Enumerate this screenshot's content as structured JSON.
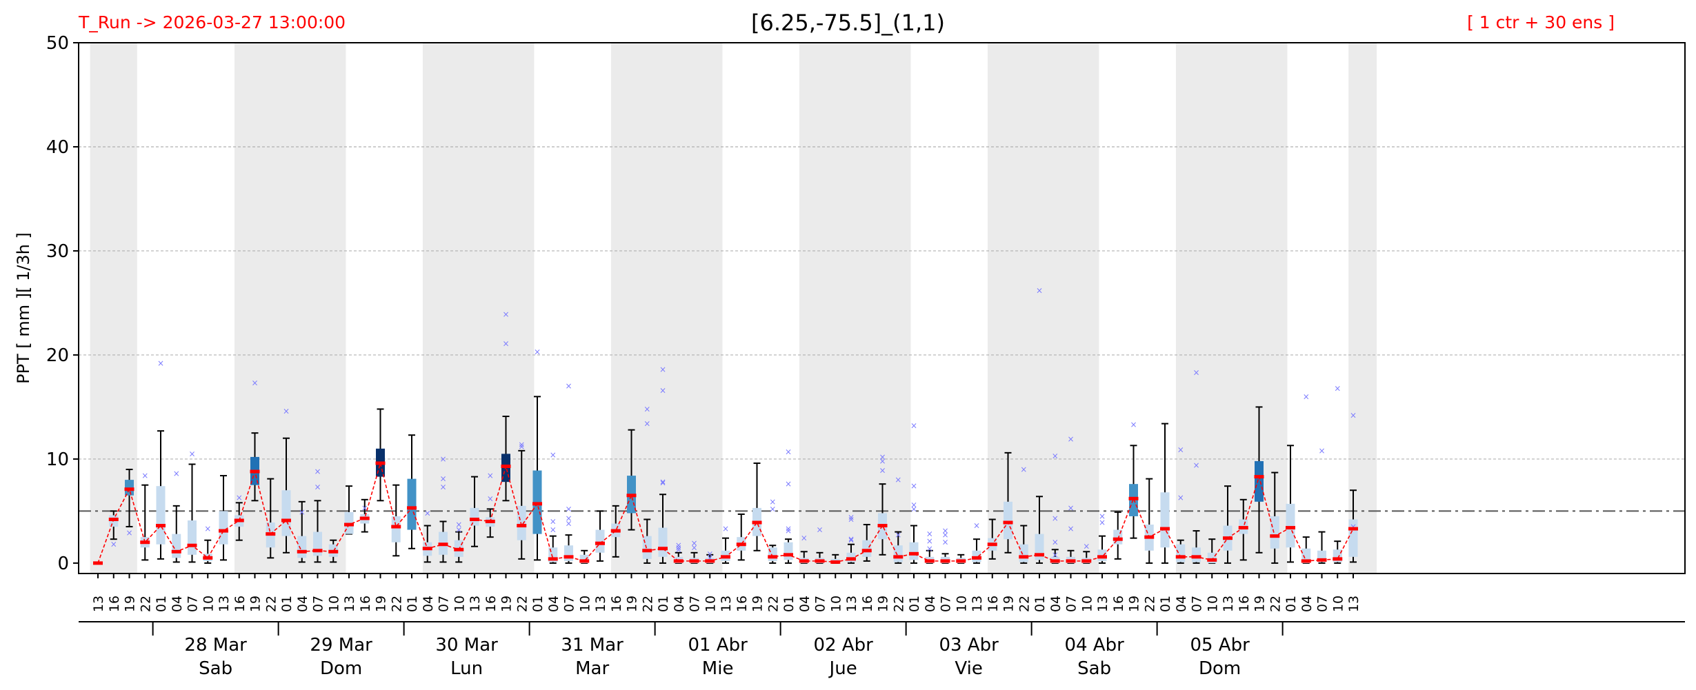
{
  "header": {
    "run_label": "T_Run -> 2026-03-27  13:00:00",
    "title": "[6.25,-75.5]_(1,1)",
    "ensemble_label": "[ 1 ctr + 30 ens ]"
  },
  "chart_data": {
    "type": "box",
    "ylabel": "PPT  [ mm ][ 1/3h ]",
    "ylim": [
      -1,
      50
    ],
    "yticks": [
      0,
      10,
      20,
      30,
      40,
      50
    ],
    "threshold": 5,
    "grid": "y-dashed",
    "hour_labels": [
      "13",
      "16",
      "19",
      "22",
      "01",
      "04",
      "07",
      "10",
      "13",
      "16",
      "19",
      "22",
      "01",
      "04",
      "07",
      "10",
      "13",
      "16",
      "19",
      "22",
      "01",
      "04",
      "07",
      "10",
      "13",
      "16",
      "19",
      "22",
      "01",
      "04",
      "07",
      "10",
      "13",
      "16",
      "19",
      "22",
      "01",
      "04",
      "07",
      "10",
      "13",
      "16",
      "19",
      "22",
      "01",
      "04",
      "07",
      "10",
      "13",
      "16",
      "19",
      "22",
      "01",
      "04",
      "07",
      "10",
      "13",
      "16",
      "19",
      "22",
      "01",
      "04",
      "07",
      "10",
      "13",
      "16",
      "19",
      "22",
      "01",
      "04",
      "07",
      "10",
      "13",
      "16",
      "19",
      "22",
      "01",
      "04",
      "07",
      "10",
      "13",
      "16",
      "19",
      "22",
      "01",
      "04",
      "07",
      "10",
      "13"
    ],
    "day_labels": [
      {
        "date": "28 Mar",
        "weekday": "Sab"
      },
      {
        "date": "29 Mar",
        "weekday": "Dom"
      },
      {
        "date": "30 Mar",
        "weekday": "Lun"
      },
      {
        "date": "31 Mar",
        "weekday": "Mar"
      },
      {
        "date": "01 Abr",
        "weekday": "Mie"
      },
      {
        "date": "02 Abr",
        "weekday": "Jue"
      },
      {
        "date": "03 Abr",
        "weekday": "Vie"
      },
      {
        "date": "04 Abr",
        "weekday": "Sab"
      },
      {
        "date": "05 Abr",
        "weekday": "Dom"
      }
    ],
    "median": [
      0,
      4.2,
      7.1,
      2,
      3.6,
      1.1,
      1.7,
      0.5,
      3.1,
      4.1,
      8.8,
      2.8,
      4.1,
      1.1,
      1.2,
      1.1,
      3.7,
      4.3,
      9.6,
      3.5,
      5.3,
      1.4,
      1.8,
      1.3,
      4.2,
      4,
      9.3,
      3.6,
      5.7,
      0.4,
      0.6,
      0.2,
      1.9,
      3.1,
      6.5,
      1.2,
      1.4,
      0.2,
      0.2,
      0.2,
      0.6,
      1.8,
      3.9,
      0.6,
      0.8,
      0.2,
      0.2,
      0.1,
      0.4,
      1.2,
      3.6,
      0.6,
      0.9,
      0.2,
      0.2,
      0.2,
      0.5,
      1.8,
      3.9,
      0.6,
      0.8,
      0.2,
      0.2,
      0.2,
      0.6,
      2.3,
      6.2,
      2.5,
      3.3,
      0.6,
      0.6,
      0.3,
      2.4,
      3.4,
      8.3,
      2.6,
      3.4,
      0.2,
      0.3,
      0.4,
      3.3
    ],
    "q1": [
      0,
      3.5,
      6.5,
      1.5,
      1.8,
      0.5,
      0.8,
      0.2,
      1.8,
      3.5,
      7.5,
      1.5,
      2.6,
      0.5,
      0.7,
      0.6,
      2.8,
      3.8,
      8.3,
      2,
      3.2,
      0.7,
      0.8,
      0.6,
      3.6,
      3.5,
      7.8,
      2.2,
      2.8,
      0.1,
      0.2,
      0,
      1,
      2.5,
      4.8,
      0.4,
      0.6,
      0,
      0,
      0,
      0.2,
      1.2,
      2.6,
      0.2,
      0.3,
      0,
      0,
      0,
      0.1,
      0.6,
      2.3,
      0.1,
      0.3,
      0,
      0,
      0,
      0.1,
      1.2,
      2.3,
      0.1,
      0.3,
      0,
      0,
      0,
      0.2,
      1.8,
      4.5,
      1.2,
      1.5,
      0.1,
      0.1,
      0,
      1.2,
      2.8,
      5.9,
      1.4,
      1.5,
      0,
      0.1,
      0.1,
      0.6
    ],
    "q3": [
      0,
      4.6,
      8,
      2.5,
      7.4,
      2.8,
      4.1,
      0.9,
      5,
      4.6,
      10.2,
      3.9,
      7,
      2.6,
      3,
      1.8,
      4.9,
      4.7,
      11,
      4.5,
      8.1,
      2,
      3,
      2.2,
      5.3,
      4.4,
      10.5,
      5.5,
      8.9,
      1.5,
      1.7,
      0.8,
      3.2,
      3.8,
      8.4,
      2.6,
      3.4,
      0.6,
      0.5,
      0.5,
      1.2,
      2.5,
      5.3,
      1.5,
      2,
      0.5,
      0.5,
      0.4,
      1,
      2.2,
      4.8,
      1.7,
      2,
      0.6,
      0.6,
      0.5,
      1.2,
      2.4,
      5.9,
      1.8,
      2.8,
      0.6,
      0.6,
      0.5,
      1.3,
      3.2,
      7.6,
      3.7,
      6.8,
      1.8,
      1.5,
      1,
      3.6,
      4.2,
      9.8,
      4.5,
      5.7,
      1.4,
      1.2,
      1.3,
      4.2
    ],
    "whisker_low": [
      0,
      2.3,
      3.5,
      0.3,
      0.4,
      0.1,
      0.1,
      0,
      0.3,
      2.2,
      6,
      0.5,
      1,
      0.1,
      0.1,
      0.1,
      2.8,
      3,
      6,
      0.7,
      1.4,
      0.1,
      0.1,
      0.1,
      1.6,
      2.5,
      6,
      0.4,
      0.3,
      0,
      0,
      0,
      0.2,
      0.6,
      3.2,
      0,
      0,
      0,
      0,
      0,
      0,
      0.3,
      1.2,
      0,
      0,
      0,
      0,
      0,
      0,
      0.2,
      0.8,
      0,
      0,
      0,
      0,
      0,
      0,
      0.4,
      1,
      0,
      0,
      0,
      0,
      0,
      0,
      0.4,
      2.4,
      0,
      0,
      0,
      0,
      0,
      0,
      0.3,
      1,
      0,
      0.1,
      0,
      0,
      0,
      0.1
    ],
    "whisker_high": [
      0,
      5,
      9,
      7.5,
      12.7,
      5.5,
      9.5,
      2.2,
      8.4,
      5.8,
      12.5,
      8.1,
      12,
      5.9,
      6,
      2.2,
      7.4,
      6.1,
      14.8,
      7.5,
      12.3,
      3.6,
      4,
      3,
      8.3,
      5.2,
      14.1,
      10.8,
      16,
      2.6,
      2.7,
      1.2,
      5,
      5.5,
      12.8,
      4.2,
      6.6,
      1,
      1,
      0.8,
      2.4,
      4.7,
      9.6,
      1.7,
      2.3,
      1.1,
      1,
      0.8,
      1.8,
      3.7,
      7.6,
      3,
      3.6,
      1.2,
      0.9,
      0.8,
      2.3,
      4.2,
      10.6,
      3.6,
      6.4,
      1.3,
      1.2,
      1.1,
      2.6,
      4.9,
      11.3,
      8.1,
      13.4,
      2.2,
      3.1,
      2.3,
      7.4,
      6.1,
      15,
      8.7,
      11.3,
      2.5,
      3,
      2.1,
      7
    ],
    "outliers": [
      [],
      [
        1.8
      ],
      [
        2.9
      ],
      [
        8.4
      ],
      [
        19.2
      ],
      [
        8.6
      ],
      [
        10.5
      ],
      [
        3.3
      ],
      [],
      [
        6.3
      ],
      [
        17.3
      ],
      [],
      [
        14.6
      ],
      [
        4.9
      ],
      [
        7.3,
        8.8
      ],
      [],
      [],
      [
        5.3
      ],
      [],
      [],
      [],
      [
        4.8
      ],
      [
        7.3,
        8.1,
        10
      ],
      [
        3.2,
        3.7
      ],
      [],
      [
        6.2,
        8.4
      ],
      [
        21.1,
        23.9
      ],
      [
        11.2,
        11.4
      ],
      [
        20.3
      ],
      [
        3.2,
        4,
        10.4
      ],
      [
        3.8,
        4.3,
        5.2,
        17
      ],
      [],
      [],
      [],
      [],
      [
        13.4,
        14.8
      ],
      [
        7.7,
        7.8,
        16.6,
        18.6
      ],
      [
        1.3,
        1.5,
        1.7
      ],
      [
        1.5,
        1.9
      ],
      [
        0.5,
        0.9
      ],
      [
        3.3
      ],
      [],
      [],
      [
        5.2,
        5.9
      ],
      [
        3.1,
        3.3,
        7.6,
        10.7
      ],
      [
        2.4
      ],
      [
        3.2
      ],
      [],
      [
        2.2,
        2.3,
        4.2,
        4.4
      ],
      [],
      [
        8.9,
        9.8,
        10.2
      ],
      [
        2.7,
        8
      ],
      [
        5.2,
        5.6,
        7.4,
        13.2
      ],
      [
        1.4,
        2.1,
        2.8
      ],
      [
        2,
        2.7,
        3.1
      ],
      [],
      [
        3.6
      ],
      [],
      [],
      [
        9
      ],
      [
        26.2
      ],
      [
        0.8,
        2,
        4.3,
        10.3
      ],
      [
        3.3,
        5.3,
        11.9
      ],
      [
        1.6
      ],
      [
        3.9,
        4.5
      ],
      [],
      [
        13.3
      ],
      [],
      [],
      [
        6.3,
        10.9
      ],
      [
        9.4,
        18.3
      ],
      [],
      [],
      [],
      [],
      [],
      [],
      [
        16
      ],
      [
        10.8
      ],
      [
        16.8
      ],
      [
        3.5,
        14.2
      ],
      [
        16.2
      ]
    ],
    "box_colors": [
      "light",
      "light",
      "mid",
      "light",
      "light",
      "light",
      "light",
      "light",
      "light",
      "light",
      "dark",
      "light",
      "light",
      "light",
      "light",
      "light",
      "light",
      "light",
      "darkest",
      "light",
      "mid",
      "light",
      "light",
      "light",
      "light",
      "light",
      "darkest",
      "light",
      "mid",
      "light",
      "light",
      "light",
      "light",
      "light",
      "mid",
      "light",
      "light",
      "light",
      "light",
      "light",
      "light",
      "light",
      "light",
      "light",
      "light",
      "light",
      "light",
      "light",
      "light",
      "light",
      "light",
      "light",
      "light",
      "light",
      "light",
      "light",
      "light",
      "light",
      "light",
      "light",
      "light",
      "light",
      "light",
      "light",
      "light",
      "light",
      "mid",
      "light",
      "light",
      "light",
      "light",
      "light",
      "light",
      "light",
      "dark",
      "light",
      "light",
      "light",
      "light",
      "light",
      "light"
    ],
    "colors": {
      "light": "#c6dbef",
      "mid": "#4292c6",
      "dark": "#2171b5",
      "darkest": "#08306b",
      "median_line": "#ff0000",
      "outlier": "#7b7bff",
      "night_band": "#ebebeb",
      "threshold_line": "#555555"
    }
  }
}
